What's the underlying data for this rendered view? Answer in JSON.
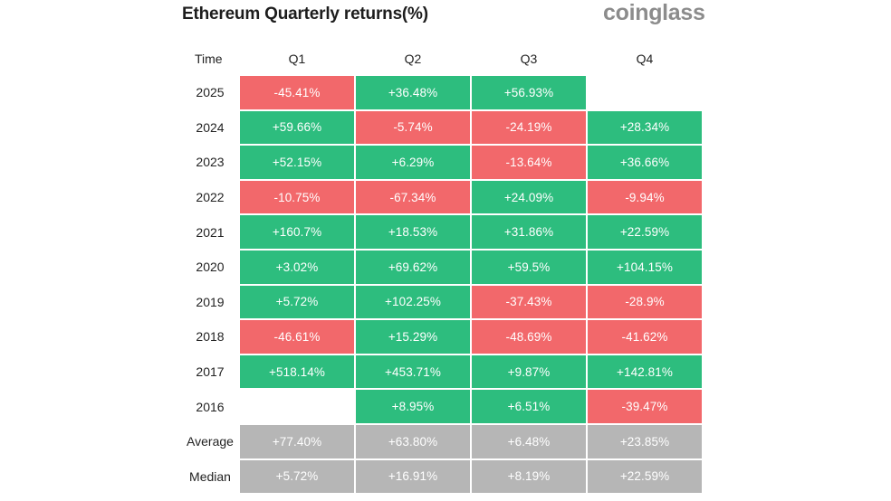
{
  "title": "Ethereum Quarterly returns(%)",
  "brand": "coinglass",
  "colors": {
    "positive": "#2dbd7e",
    "negative": "#f2686b",
    "stat": "#b6b6b6"
  },
  "chart_data": {
    "type": "table",
    "title": "Ethereum Quarterly returns(%)",
    "row_header": "Time",
    "columns": [
      "Q1",
      "Q2",
      "Q3",
      "Q4"
    ],
    "rows": [
      {
        "label": "2025",
        "values": [
          "-45.41%",
          "+36.48%",
          "+56.93%",
          ""
        ]
      },
      {
        "label": "2024",
        "values": [
          "+59.66%",
          "-5.74%",
          "-24.19%",
          "+28.34%"
        ]
      },
      {
        "label": "2023",
        "values": [
          "+52.15%",
          "+6.29%",
          "-13.64%",
          "+36.66%"
        ]
      },
      {
        "label": "2022",
        "values": [
          "-10.75%",
          "-67.34%",
          "+24.09%",
          "-9.94%"
        ]
      },
      {
        "label": "2021",
        "values": [
          "+160.7%",
          "+18.53%",
          "+31.86%",
          "+22.59%"
        ]
      },
      {
        "label": "2020",
        "values": [
          "+3.02%",
          "+69.62%",
          "+59.5%",
          "+104.15%"
        ]
      },
      {
        "label": "2019",
        "values": [
          "+5.72%",
          "+102.25%",
          "-37.43%",
          "-28.9%"
        ]
      },
      {
        "label": "2018",
        "values": [
          "-46.61%",
          "+15.29%",
          "-48.69%",
          "-41.62%"
        ]
      },
      {
        "label": "2017",
        "values": [
          "+518.14%",
          "+453.71%",
          "+9.87%",
          "+142.81%"
        ]
      },
      {
        "label": "2016",
        "values": [
          "",
          "+8.95%",
          "+6.51%",
          "-39.47%"
        ]
      }
    ],
    "summary": [
      {
        "label": "Average",
        "values": [
          "+77.40%",
          "+63.80%",
          "+6.48%",
          "+23.85%"
        ]
      },
      {
        "label": "Median",
        "values": [
          "+5.72%",
          "+16.91%",
          "+8.19%",
          "+22.59%"
        ]
      }
    ]
  }
}
